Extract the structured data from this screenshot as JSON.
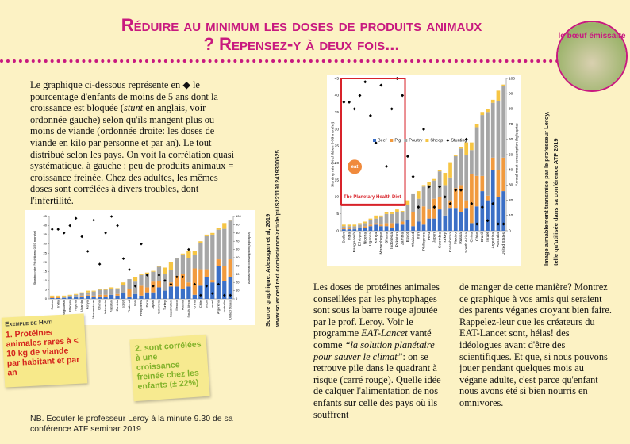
{
  "header": {
    "title": "Réduire au minimum les doses de produits animaux ? Repensez-y à deux fois..."
  },
  "logo": {
    "text": "le bœuf émissaire"
  },
  "intro": {
    "parts": [
      "Le graphique ci-dessous représente en ◆ le pourcentage d'enfants de moins de 5 ans dont la croissance est bloquée (",
      "stunt",
      " en anglais, voir ordonnée gauche) selon qu'ils mangent plus ou moins de viande (ordonnée droite: les doses de viande en kilo par personne et par an). Le tout distribué selon les pays. On voit la corrélation quasi systématique, à gauche : peu de produits animaux = croissance freinée. Chez des adultes, les mêmes doses sont corrélées à divers troubles, dont l'infertilité."
    ]
  },
  "chart_data": {
    "type": "bar",
    "categories": [
      "Sudan",
      "India",
      "Bangladesh",
      "Ethiopia",
      "Nigeria",
      "Uganda",
      "Kenya",
      "Mozambique",
      "Ghana",
      "Indonesia",
      "Pakistan",
      "Zambia",
      "Egypt",
      "Thailand",
      "Iran",
      "Philippines",
      "Peru",
      "Japan",
      "Colombia",
      "Turkey",
      "Kazakhstan",
      "Mexico",
      "Russia",
      "South Africa",
      "China",
      "Chile",
      "Brazil",
      "Israel",
      "Argentina",
      "Australia",
      "United States"
    ],
    "series": [
      {
        "name": "Beef",
        "color": "#3b6fc6",
        "axis": "y2",
        "values": [
          1,
          1,
          1,
          2,
          2,
          3,
          4,
          3,
          3,
          2,
          5,
          4,
          7,
          3,
          6,
          4,
          8,
          8,
          14,
          10,
          15,
          15,
          12,
          15,
          5,
          16,
          26,
          20,
          40,
          22,
          26
        ]
      },
      {
        "name": "Pig",
        "color": "#f19a3e",
        "axis": "y2",
        "values": [
          1,
          1,
          0,
          0,
          1,
          1,
          1,
          1,
          2,
          3,
          0,
          2,
          0,
          9,
          0,
          12,
          6,
          13,
          8,
          0,
          5,
          13,
          18,
          5,
          32,
          20,
          10,
          3,
          8,
          18,
          22
        ]
      },
      {
        "name": "Poultry",
        "color": "#a6a6a6",
        "axis": "y2",
        "values": [
          1,
          1,
          2,
          2,
          2,
          3,
          3,
          5,
          6,
          6,
          7,
          6,
          10,
          12,
          15,
          13,
          16,
          12,
          17,
          20,
          15,
          21,
          24,
          30,
          16,
          32,
          40,
          55,
          36,
          45,
          47
        ]
      },
      {
        "name": "Sheep",
        "color": "#f6c544",
        "axis": "y2",
        "values": [
          1,
          1,
          1,
          1,
          1,
          1,
          2,
          1,
          1,
          1,
          2,
          1,
          3,
          0,
          5,
          1,
          2,
          1,
          1,
          8,
          10,
          1,
          1,
          8,
          5,
          2,
          2,
          2,
          2,
          7,
          1
        ]
      },
      {
        "name": "Stunting",
        "color": "#000000",
        "type": "scatter",
        "values": [
          38,
          38,
          36,
          40,
          44,
          34,
          26,
          43,
          19,
          36,
          45,
          40,
          22,
          16,
          7,
          30,
          13,
          7,
          13,
          10,
          8,
          12,
          12,
          27,
          8,
          2,
          7,
          3,
          8,
          2,
          2
        ]
      }
    ],
    "ylabel": "Stunting rate (% children 0-59 months)",
    "y2label": "Annual meat consumption (kg/capita)",
    "ylim": [
      0,
      45
    ],
    "yticks": [
      0,
      5,
      10,
      15,
      20,
      25,
      30,
      35,
      40,
      45
    ],
    "y2lim": [
      0,
      100
    ],
    "y2ticks": [
      0,
      10,
      20,
      30,
      40,
      50,
      60,
      70,
      80,
      90,
      100
    ],
    "annotation": "The Planetary Health Diet",
    "badge": "eat",
    "planetary_limit": 17,
    "red_box_categories": 12
  },
  "sources": {
    "graph": "Source graphique: Adesogan et al, 2019",
    "url": "www.sciencedirect.com/science/article/pii/S2211912419300525",
    "credit": [
      "Image aimablement transmise par le professeur Leroy,",
      "telle qu'utilisée dans sa conférence ATF 2019"
    ]
  },
  "notes": {
    "note1": {
      "heading": "Exemple de Haiti",
      "text": "1. Protéines animales rares à < 10 kg de viande par habitant et par an"
    },
    "note2": {
      "text": "2. sont corrélées à une croissance freinée chez les enfants (± 22%)"
    }
  },
  "body": {
    "middle": [
      "Les doses de protéines animales conseillées par les phytophages sont sous la barre rouge ajoutée par le prof. Leroy. Voir le programme ",
      "EAT-Lancet",
      " vanté comme ",
      "“la solution planétaire pour sauver le climat”",
      ": on se retrouve pile dans le quadrant à risque (carré rouge). Quelle idée de calquer l'alimentation de nos enfants sur celle des pays où ils souffrent"
    ],
    "right": "de manger de cette manière? Montrez ce graphique à vos amis qui seraient des parents véganes croyant bien faire. Rappelez-leur que les créateurs du EAT-Lancet sont, hélas! des idéologues avant d'être des scientifiques. Et que, si nous pouvons jouer pendant quelques mois au végane adulte, c'est parce qu'enfant nous avons été si bien nourris en omnivores."
  },
  "footer": {
    "text": "NB. Ecouter le professeur Leroy à la minute 9.30 de sa conférence ATF seminar 2019"
  }
}
